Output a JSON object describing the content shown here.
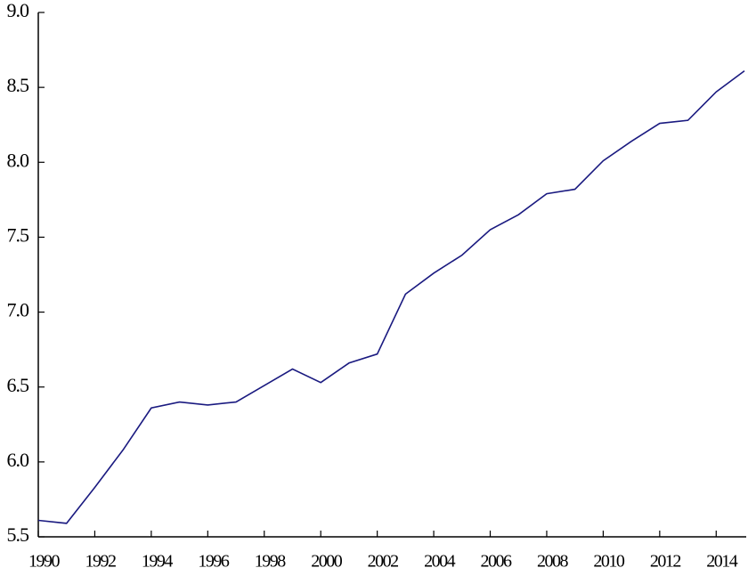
{
  "chart_data": {
    "type": "line",
    "x": [
      1990,
      1991,
      1992,
      1993,
      1994,
      1995,
      1996,
      1997,
      1998,
      1999,
      2000,
      2001,
      2002,
      2003,
      2004,
      2005,
      2006,
      2007,
      2008,
      2009,
      2010,
      2011,
      2012,
      2013,
      2014,
      2015
    ],
    "values": [
      5.61,
      5.59,
      5.83,
      6.08,
      6.36,
      6.4,
      6.38,
      6.4,
      6.51,
      6.62,
      6.53,
      6.66,
      6.72,
      7.12,
      7.26,
      7.38,
      7.55,
      7.65,
      7.79,
      7.82,
      8.01,
      8.14,
      8.26,
      8.28,
      8.47,
      8.61
    ],
    "color": "#1a1a80",
    "xlim": [
      1990,
      2015
    ],
    "xticks": [
      1990,
      1992,
      1994,
      1996,
      1998,
      2000,
      2002,
      2004,
      2006,
      2008,
      2010,
      2012,
      2014
    ],
    "ylim": [
      5.5,
      9.0
    ],
    "yticks": [
      5.5,
      {
        "value": 6,
        "label": "6.0"
      },
      6.5,
      {
        "value": 7,
        "label": "7.0"
      },
      7.5,
      {
        "value": 8,
        "label": "8.0"
      },
      8.5,
      {
        "value": 9,
        "label": "9.0"
      }
    ]
  }
}
